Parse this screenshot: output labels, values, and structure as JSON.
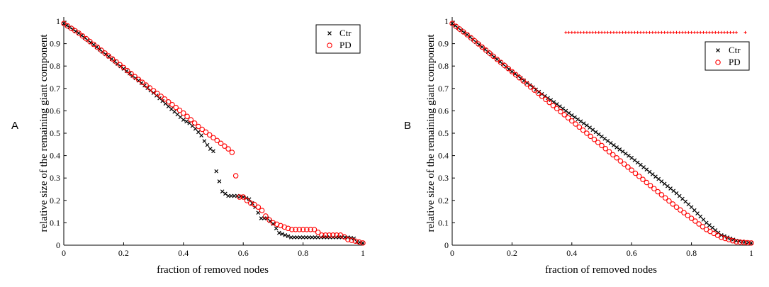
{
  "chart_data": [
    {
      "type": "scatter",
      "panel_label": "A",
      "xlabel": "fraction of removed nodes",
      "ylabel": "relative size of the remaining giant component",
      "xlim": [
        0,
        1
      ],
      "ylim": [
        0,
        1
      ],
      "x_ticks": [
        "0",
        "0.2",
        "0.4",
        "0.6",
        "0.8",
        "1"
      ],
      "y_ticks": [
        "0",
        "0.1",
        "0.2",
        "0.3",
        "0.4",
        "0.5",
        "0.6",
        "0.7",
        "0.8",
        "0.9",
        "1"
      ],
      "legend": {
        "position": "top-right",
        "entries": [
          "Ctr",
          "PD"
        ]
      },
      "series": [
        {
          "name": "Ctr",
          "marker": "x",
          "color": "#000000",
          "points": [
            [
              0,
              0.99
            ],
            [
              0.05,
              0.947
            ],
            [
              0.1,
              0.895
            ],
            [
              0.15,
              0.842
            ],
            [
              0.2,
              0.788
            ],
            [
              0.25,
              0.735
            ],
            [
              0.3,
              0.68
            ],
            [
              0.35,
              0.62
            ],
            [
              0.4,
              0.56
            ],
            [
              0.42,
              0.545
            ],
            [
              0.44,
              0.52
            ],
            [
              0.46,
              0.49
            ],
            [
              0.47,
              0.465
            ],
            [
              0.49,
              0.43
            ],
            [
              0.5,
              0.42
            ],
            [
              0.51,
              0.33
            ],
            [
              0.53,
              0.24
            ],
            [
              0.55,
              0.22
            ],
            [
              0.58,
              0.22
            ],
            [
              0.6,
              0.215
            ],
            [
              0.62,
              0.205
            ],
            [
              0.64,
              0.17
            ],
            [
              0.66,
              0.12
            ],
            [
              0.68,
              0.12
            ],
            [
              0.7,
              0.095
            ],
            [
              0.72,
              0.055
            ],
            [
              0.74,
              0.045
            ],
            [
              0.76,
              0.035
            ],
            [
              0.8,
              0.035
            ],
            [
              0.85,
              0.035
            ],
            [
              0.9,
              0.035
            ],
            [
              0.95,
              0.035
            ],
            [
              0.97,
              0.03
            ],
            [
              0.98,
              0.015
            ],
            [
              1,
              0.01
            ]
          ]
        },
        {
          "name": "PD",
          "marker": "o",
          "color": "#ff0000",
          "points": [
            [
              0,
              0.99
            ],
            [
              0.05,
              0.947
            ],
            [
              0.1,
              0.897
            ],
            [
              0.15,
              0.845
            ],
            [
              0.2,
              0.793
            ],
            [
              0.25,
              0.74
            ],
            [
              0.3,
              0.69
            ],
            [
              0.35,
              0.64
            ],
            [
              0.4,
              0.59
            ],
            [
              0.45,
              0.53
            ],
            [
              0.5,
              0.48
            ],
            [
              0.53,
              0.45
            ],
            [
              0.55,
              0.43
            ],
            [
              0.57,
              0.405
            ],
            [
              0.58,
              0.215
            ],
            [
              0.6,
              0.215
            ],
            [
              0.62,
              0.19
            ],
            [
              0.64,
              0.18
            ],
            [
              0.66,
              0.16
            ],
            [
              0.68,
              0.12
            ],
            [
              0.7,
              0.1
            ],
            [
              0.72,
              0.09
            ],
            [
              0.74,
              0.08
            ],
            [
              0.76,
              0.07
            ],
            [
              0.8,
              0.07
            ],
            [
              0.84,
              0.07
            ],
            [
              0.86,
              0.045
            ],
            [
              0.9,
              0.045
            ],
            [
              0.93,
              0.045
            ],
            [
              0.95,
              0.025
            ],
            [
              0.97,
              0.02
            ],
            [
              1,
              0.01
            ]
          ]
        }
      ]
    },
    {
      "type": "scatter",
      "panel_label": "B",
      "xlabel": "fraction of removed nodes",
      "ylabel": "relative size of the remaining giant component",
      "xlim": [
        0,
        1
      ],
      "ylim": [
        0,
        1
      ],
      "x_ticks": [
        "0",
        "0.2",
        "0.4",
        "0.6",
        "0.8",
        "1"
      ],
      "y_ticks": [
        "0",
        "0.1",
        "0.2",
        "0.3",
        "0.4",
        "0.5",
        "0.6",
        "0.7",
        "0.8",
        "0.9",
        "1"
      ],
      "legend": {
        "position": "top-right",
        "entries": [
          "Ctr",
          "PD"
        ]
      },
      "annotation": {
        "type": "significance-markers",
        "color": "#ff0000",
        "y": 0.95,
        "x_range": [
          0.38,
          0.95
        ],
        "extra_x": 0.98
      },
      "series": [
        {
          "name": "Ctr",
          "marker": "x",
          "color": "#000000",
          "points": [
            [
              0,
              0.99
            ],
            [
              0.05,
              0.94
            ],
            [
              0.1,
              0.885
            ],
            [
              0.15,
              0.83
            ],
            [
              0.2,
              0.775
            ],
            [
              0.25,
              0.725
            ],
            [
              0.3,
              0.675
            ],
            [
              0.35,
              0.63
            ],
            [
              0.4,
              0.58
            ],
            [
              0.45,
              0.535
            ],
            [
              0.5,
              0.485
            ],
            [
              0.55,
              0.437
            ],
            [
              0.6,
              0.39
            ],
            [
              0.65,
              0.338
            ],
            [
              0.7,
              0.285
            ],
            [
              0.75,
              0.232
            ],
            [
              0.8,
              0.17
            ],
            [
              0.85,
              0.1
            ],
            [
              0.9,
              0.045
            ],
            [
              0.95,
              0.02
            ],
            [
              1,
              0.01
            ]
          ]
        },
        {
          "name": "PD",
          "marker": "o",
          "color": "#ff0000",
          "points": [
            [
              0,
              0.99
            ],
            [
              0.05,
              0.94
            ],
            [
              0.1,
              0.885
            ],
            [
              0.15,
              0.83
            ],
            [
              0.2,
              0.775
            ],
            [
              0.25,
              0.72
            ],
            [
              0.3,
              0.665
            ],
            [
              0.35,
              0.61
            ],
            [
              0.4,
              0.555
            ],
            [
              0.45,
              0.5
            ],
            [
              0.5,
              0.445
            ],
            [
              0.55,
              0.39
            ],
            [
              0.6,
              0.335
            ],
            [
              0.65,
              0.28
            ],
            [
              0.7,
              0.225
            ],
            [
              0.75,
              0.17
            ],
            [
              0.8,
              0.12
            ],
            [
              0.85,
              0.07
            ],
            [
              0.9,
              0.035
            ],
            [
              0.95,
              0.015
            ],
            [
              1,
              0.01
            ]
          ]
        }
      ]
    }
  ]
}
